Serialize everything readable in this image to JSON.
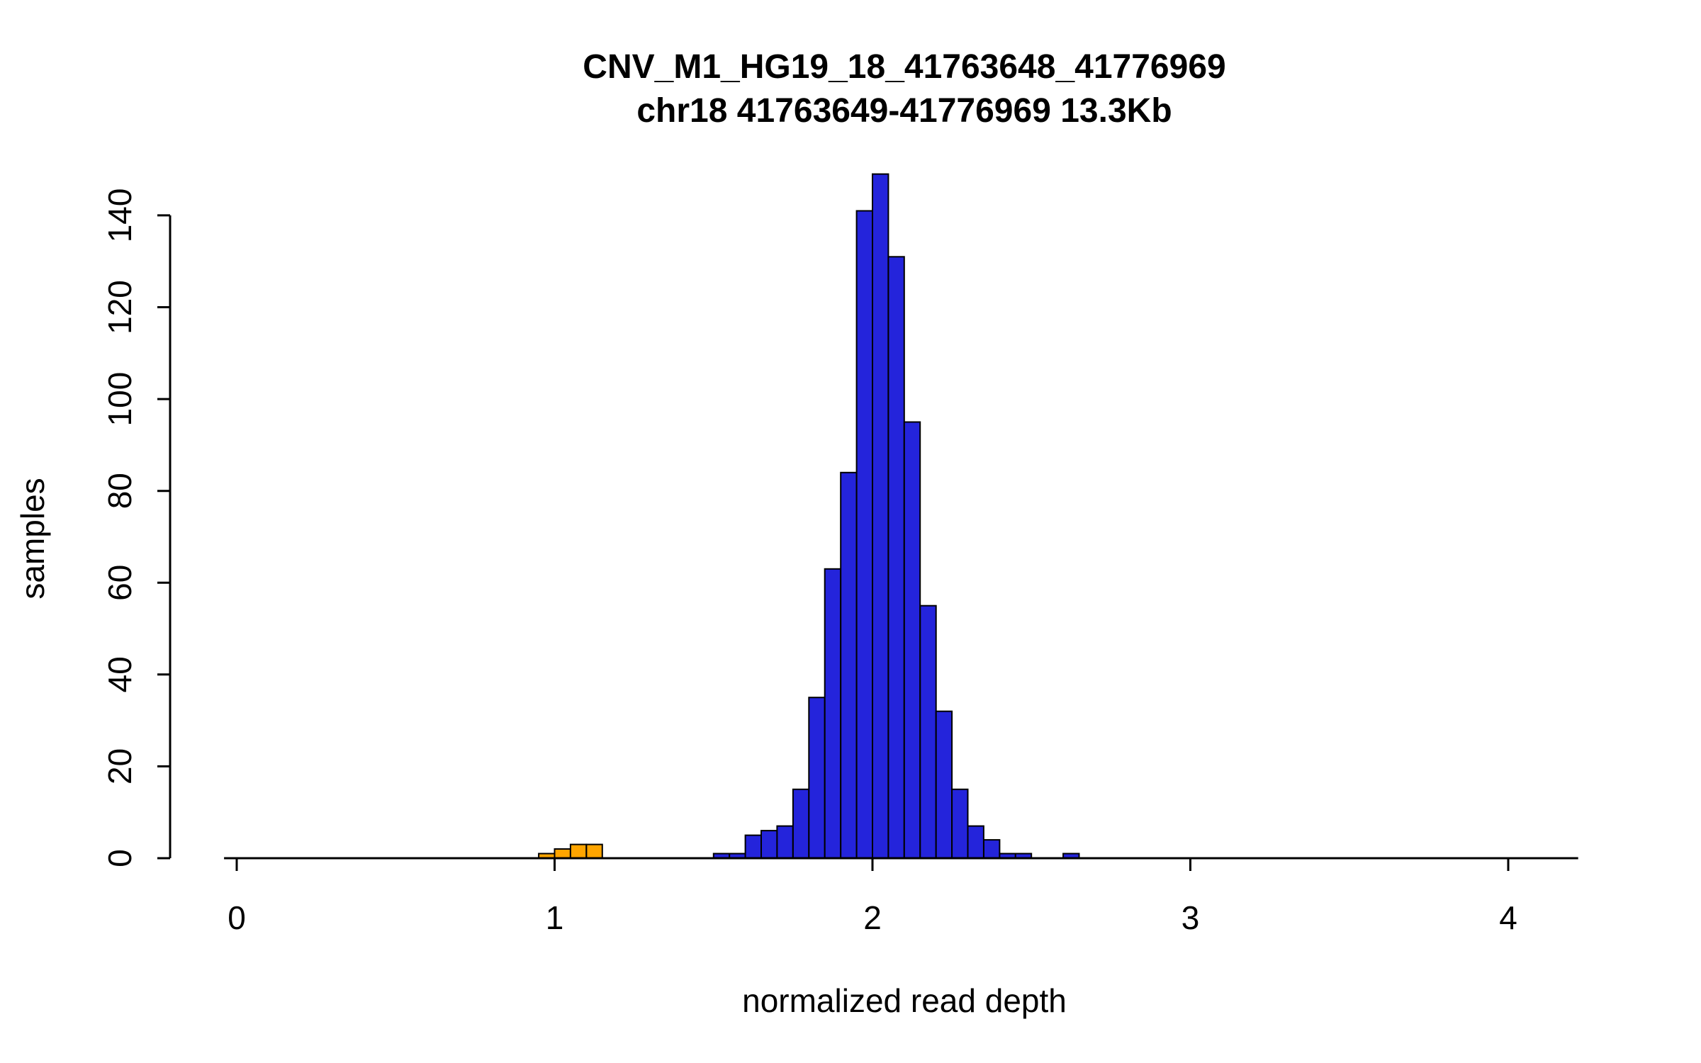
{
  "title_line1": "CNV_M1_HG19_18_41763648_41776969",
  "title_line2": "chr18 41763649-41776969 13.3Kb",
  "xlabel": "normalized read depth",
  "ylabel": "samples",
  "colors": {
    "main_series": "#2424DB",
    "outlier_series": "#FFA500",
    "axis": "#000000",
    "background": "#FFFFFF"
  },
  "chart_data": {
    "type": "bar",
    "subtype": "histogram",
    "title": "CNV_M1_HG19_18_41763648_41776969",
    "subtitle": "chr18 41763649-41776969 13.3Kb",
    "xlabel": "normalized read depth",
    "ylabel": "samples",
    "bin_width": 0.05,
    "xlim": [
      0,
      4.2
    ],
    "ylim": [
      0,
      150
    ],
    "x_ticks": [
      0,
      1,
      2,
      3,
      4
    ],
    "y_ticks": [
      0,
      20,
      40,
      60,
      80,
      100,
      120,
      140
    ],
    "grid": false,
    "legend": "none",
    "series": [
      {
        "name": "outlier-samples",
        "color": "#FFA500",
        "bins": [
          {
            "x": 0.95,
            "count": 1
          },
          {
            "x": 1.0,
            "count": 2
          },
          {
            "x": 1.05,
            "count": 3
          },
          {
            "x": 1.1,
            "count": 3
          }
        ]
      },
      {
        "name": "main-samples",
        "color": "#2424DB",
        "bins": [
          {
            "x": 1.5,
            "count": 1
          },
          {
            "x": 1.55,
            "count": 1
          },
          {
            "x": 1.6,
            "count": 5
          },
          {
            "x": 1.65,
            "count": 6
          },
          {
            "x": 1.7,
            "count": 7
          },
          {
            "x": 1.75,
            "count": 15
          },
          {
            "x": 1.8,
            "count": 35
          },
          {
            "x": 1.85,
            "count": 63
          },
          {
            "x": 1.9,
            "count": 84
          },
          {
            "x": 1.95,
            "count": 141
          },
          {
            "x": 2.0,
            "count": 149
          },
          {
            "x": 2.05,
            "count": 131
          },
          {
            "x": 2.1,
            "count": 95
          },
          {
            "x": 2.15,
            "count": 55
          },
          {
            "x": 2.2,
            "count": 32
          },
          {
            "x": 2.25,
            "count": 15
          },
          {
            "x": 2.3,
            "count": 7
          },
          {
            "x": 2.35,
            "count": 4
          },
          {
            "x": 2.4,
            "count": 1
          },
          {
            "x": 2.45,
            "count": 1
          },
          {
            "x": 2.6,
            "count": 1
          }
        ]
      }
    ]
  }
}
